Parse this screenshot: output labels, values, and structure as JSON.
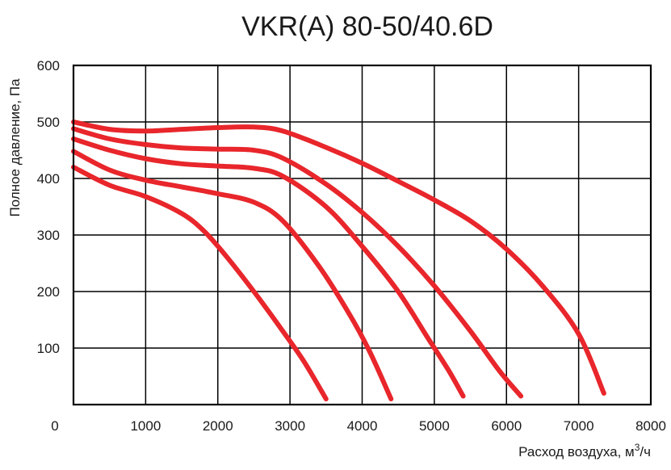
{
  "chart_data": {
    "type": "line",
    "title": "VKR(A) 80-50/40.6D",
    "xlabel": "Расход воздуха, м",
    "xlabel_sup": "3",
    "xlabel_suffix": "/ч",
    "ylabel": "Полное давление, Па",
    "xlim": [
      0,
      8000
    ],
    "ylim": [
      0,
      600
    ],
    "x_ticks": [
      1000,
      2000,
      3000,
      4000,
      5000,
      6000,
      7000,
      8000
    ],
    "x_tick_labels": [
      "1000",
      "2000",
      "3000",
      "4000",
      "5000",
      "6000",
      "7000",
      "8000"
    ],
    "y_ticks": [
      100,
      200,
      300,
      400,
      500,
      600
    ],
    "y_tick_labels": [
      "100",
      "200",
      "300",
      "400",
      "500",
      "600"
    ],
    "origin_label": "0",
    "grid": true,
    "curve_color": "#e8262b",
    "series": [
      {
        "points": [
          [
            0,
            500
          ],
          [
            500,
            487
          ],
          [
            1000,
            484
          ],
          [
            1500,
            487
          ],
          [
            2000,
            490
          ],
          [
            2500,
            491
          ],
          [
            2900,
            484
          ],
          [
            3500,
            455
          ],
          [
            4000,
            427
          ],
          [
            4500,
            395
          ],
          [
            5000,
            362
          ],
          [
            5500,
            325
          ],
          [
            6000,
            275
          ],
          [
            6500,
            210
          ],
          [
            7000,
            125
          ],
          [
            7350,
            20
          ]
        ]
      },
      {
        "points": [
          [
            0,
            488
          ],
          [
            500,
            470
          ],
          [
            1000,
            460
          ],
          [
            1500,
            454
          ],
          [
            2000,
            452
          ],
          [
            2500,
            450
          ],
          [
            2900,
            436
          ],
          [
            3500,
            390
          ],
          [
            4000,
            340
          ],
          [
            4500,
            280
          ],
          [
            5000,
            210
          ],
          [
            5500,
            130
          ],
          [
            5900,
            60
          ],
          [
            6200,
            15
          ]
        ]
      },
      {
        "points": [
          [
            0,
            470
          ],
          [
            500,
            450
          ],
          [
            1000,
            435
          ],
          [
            1500,
            426
          ],
          [
            2000,
            422
          ],
          [
            2500,
            418
          ],
          [
            2900,
            404
          ],
          [
            3500,
            350
          ],
          [
            4000,
            280
          ],
          [
            4500,
            200
          ],
          [
            4900,
            120
          ],
          [
            5200,
            60
          ],
          [
            5400,
            15
          ]
        ]
      },
      {
        "points": [
          [
            0,
            448
          ],
          [
            500,
            415
          ],
          [
            1000,
            397
          ],
          [
            1500,
            385
          ],
          [
            2000,
            373
          ],
          [
            2500,
            358
          ],
          [
            2900,
            325
          ],
          [
            3400,
            245
          ],
          [
            3800,
            165
          ],
          [
            4100,
            95
          ],
          [
            4400,
            10
          ]
        ]
      },
      {
        "points": [
          [
            0,
            420
          ],
          [
            500,
            388
          ],
          [
            1000,
            368
          ],
          [
            1500,
            338
          ],
          [
            1800,
            308
          ],
          [
            2100,
            265
          ],
          [
            2500,
            200
          ],
          [
            2900,
            130
          ],
          [
            3200,
            75
          ],
          [
            3500,
            10
          ]
        ]
      }
    ]
  }
}
